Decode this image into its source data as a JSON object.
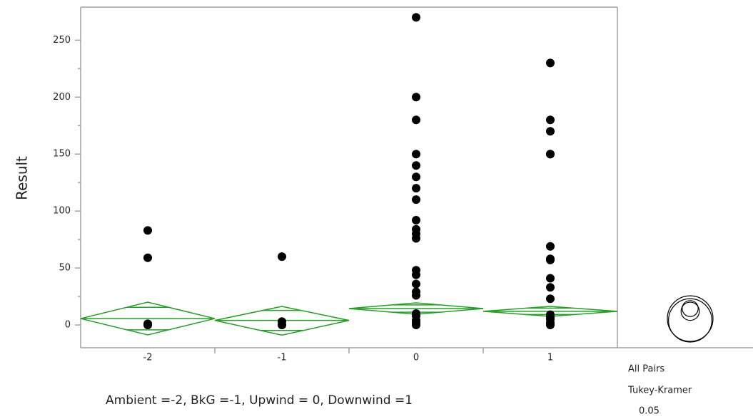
{
  "chart_data": {
    "type": "oneway",
    "y_label": "Result",
    "footnote": "Ambient =-2, BkG =-1, Upwind = 0, Downwind =1",
    "categories": [
      "-2",
      "-1",
      "0",
      "1"
    ],
    "values": [
      [
        83,
        59,
        1,
        0,
        0
      ],
      [
        60,
        3,
        0,
        0
      ],
      [
        270,
        200,
        180,
        150,
        140,
        130,
        120,
        110,
        92,
        84,
        80,
        76,
        48,
        44,
        36,
        29,
        26,
        10,
        8,
        4,
        2,
        0
      ],
      [
        230,
        180,
        170,
        150,
        150,
        69,
        58,
        57,
        41,
        33,
        23,
        9,
        7,
        5,
        2,
        0
      ]
    ],
    "point_color": "#000000",
    "diamond_color": "#22a022",
    "diamonds": [
      {
        "mean": 5.6,
        "upper": 20,
        "lower": -8.7,
        "overlap_upper": 15.5,
        "overlap_lower": -4.3
      },
      {
        "mean": 4,
        "upper": 16.3,
        "lower": -9,
        "overlap_upper": 12.8,
        "overlap_lower": -4.8
      },
      {
        "mean": 14.4,
        "upper": 19.4,
        "lower": 9.4,
        "overlap_upper": 17.6,
        "overlap_lower": 11.2
      },
      {
        "mean": 12,
        "upper": 16.3,
        "lower": 7.5,
        "overlap_upper": 14.8,
        "overlap_lower": 9.2
      }
    ],
    "ylim": [
      -20,
      279
    ],
    "yticks": [
      0,
      50,
      100,
      150,
      200,
      250
    ],
    "yminorticks": [
      25,
      75,
      125,
      175,
      225
    ],
    "comparison": {
      "method": [
        "All Pairs",
        "Tukey-Kramer"
      ],
      "alpha": "0.05",
      "circles": [
        {
          "center": 5.6,
          "radius": 20
        },
        {
          "center": 4,
          "radius": 19
        },
        {
          "center": 14.4,
          "radius": 7
        },
        {
          "center": 12,
          "radius": 8
        }
      ]
    }
  }
}
